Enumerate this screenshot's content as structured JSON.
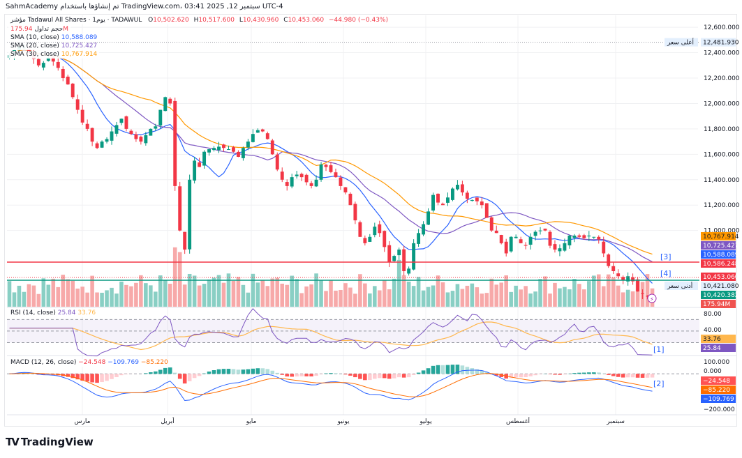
{
  "header": {
    "publish_line": "SahmAcademy تم إنشاؤها باستخدام TradingView.com، 03:41 2025 ,12 سبتمبر UTC-4"
  },
  "symbol": {
    "name": "مؤشر Tadawul All Shares · يوم1 · TADAWUL",
    "open_label": "O",
    "open": "10,502.620",
    "high_label": "H",
    "high": "10,517.600",
    "low_label": "L",
    "low": "10,430.960",
    "close_label": "C",
    "close": "10,453.060",
    "change": "−44.980 (−0.43%)"
  },
  "legend": {
    "volume_label": "حجم تداول",
    "volume_value": "175.94M",
    "sma10_label": "SMA (10, close)",
    "sma10_value": "10,588.089",
    "sma20_label": "SMA (20, close)",
    "sma20_value": "10,725.427",
    "sma30_label": "SMA (30, close)",
    "sma30_value": "10,767.914",
    "rsi_label": "RSI (14, close)",
    "rsi_value": "25.84",
    "rsi_ma_value": "33.76",
    "macd_label": "MACD (12, 26, close)",
    "macd_hist": "−24.548",
    "macd_line": "−109.769",
    "macd_signal": "−85.220"
  },
  "colors": {
    "up": "#089981",
    "down": "#f23645",
    "sma10": "#2962ff",
    "sma20": "#7e57c2",
    "sma30": "#ff9800",
    "rsi": "#7e57c2",
    "rsi_ma": "#ffb74d",
    "macd": "#2962ff",
    "signal": "#ff6d00"
  },
  "price_axis": {
    "ticks": [
      "12,600.000",
      "12,400.000",
      "12,200.000",
      "12,000.000",
      "11,800.000",
      "11,600.000",
      "11,400.000",
      "11,200.000",
      "11,000.000"
    ],
    "high_tag_label": "أعلى سعر",
    "high_tag_value": "12,481.930",
    "low_tag_label": "أدنى سعر",
    "low_tag_value": "10,421.080",
    "sma30_tag": "10,767.914",
    "sma20_tag": "10,725.427",
    "sma10_tag": "10,588.089",
    "red_line_tag": "10,586.248",
    "close_tag": "10,453.060",
    "green_line_tag": "10,420.382",
    "volume_tag": "175.94M"
  },
  "rsi_axis": {
    "ticks": [
      "80.00",
      "40.00"
    ],
    "rsi_tag": "25.84",
    "ma_tag": "33.76"
  },
  "macd_axis": {
    "ticks": [
      "100.000",
      "0.000",
      "−200.000"
    ],
    "hist_tag": "−24.548",
    "signal_tag": "−85.220",
    "macd_tag": "−109.769"
  },
  "annotations": [
    "[1]",
    "[2]",
    "[3]",
    "[4]"
  ],
  "time_axis": [
    "مارس",
    "أبريل",
    "مايو",
    "يونيو",
    "يوليو",
    "أغسطس",
    "سبتمبر"
  ],
  "footer": {
    "brand": "TradingView"
  },
  "chart_data": {
    "type": "candlestick",
    "title": "Tadawul All Shares (TASI) · 1D",
    "y_range": [
      10400,
      12650
    ],
    "horizontal_lines": [
      {
        "value": 10586.248,
        "color": "#f23645"
      },
      {
        "value": 10420.382,
        "color": "#089981"
      }
    ],
    "path_close": [
      12380,
      12420,
      12450,
      12440,
      12400,
      12350,
      12300,
      12320,
      12360,
      12330,
      12280,
      12200,
      12150,
      12050,
      11950,
      11850,
      11800,
      11700,
      11650,
      11700,
      11720,
      11780,
      11830,
      11880,
      11800,
      11760,
      11720,
      11700,
      11750,
      11800,
      11820,
      11950,
      12050,
      12000,
      11350,
      11000,
      10850,
      11400,
      11550,
      11500,
      11620,
      11640,
      11650,
      11660,
      11650,
      11640,
      11620,
      11580,
      11650,
      11700,
      11760,
      11790,
      11780,
      11720,
      11600,
      11480,
      11400,
      11350,
      11420,
      11440,
      11420,
      11380,
      11350,
      11400,
      11520,
      11500,
      11460,
      11420,
      11350,
      11300,
      11200,
      11080,
      10950,
      10900,
      10950,
      11030,
      10980,
      10870,
      10750,
      10800,
      10850,
      10680,
      10700,
      10900,
      10980,
      11050,
      11150,
      11280,
      11220,
      11200,
      11260,
      11330,
      11360,
      11300,
      11250,
      11240,
      11230,
      11200,
      11100,
      11000,
      10980,
      10900,
      10820,
      10950,
      10950,
      10900,
      10880,
      10950,
      10990,
      11000,
      11000,
      10880,
      10850,
      10860,
      10900,
      10960,
      10960,
      10950,
      10940,
      10960,
      10950,
      10930,
      10820,
      10720,
      10680,
      10640,
      10610,
      10640,
      10600,
      10520,
      10500,
      10480,
      10453
    ],
    "volume_label": "175.94M"
  }
}
